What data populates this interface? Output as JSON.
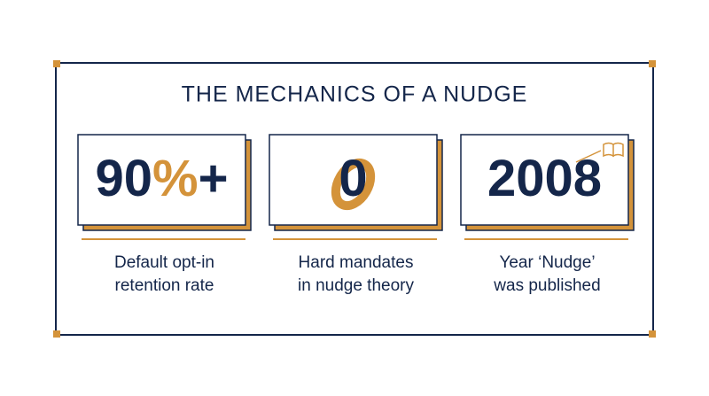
{
  "title": "THE MECHANICS OF A NUDGE",
  "stats": [
    {
      "value": "90",
      "unit": "%",
      "suffix": "+",
      "label": [
        "Default opt-in",
        "retention rate"
      ]
    },
    {
      "value": "0",
      "label": [
        "Hard mandates",
        "in nudge theory"
      ]
    },
    {
      "value": "2008",
      "label": [
        "Year ‘Nudge’",
        "was published"
      ]
    }
  ]
}
